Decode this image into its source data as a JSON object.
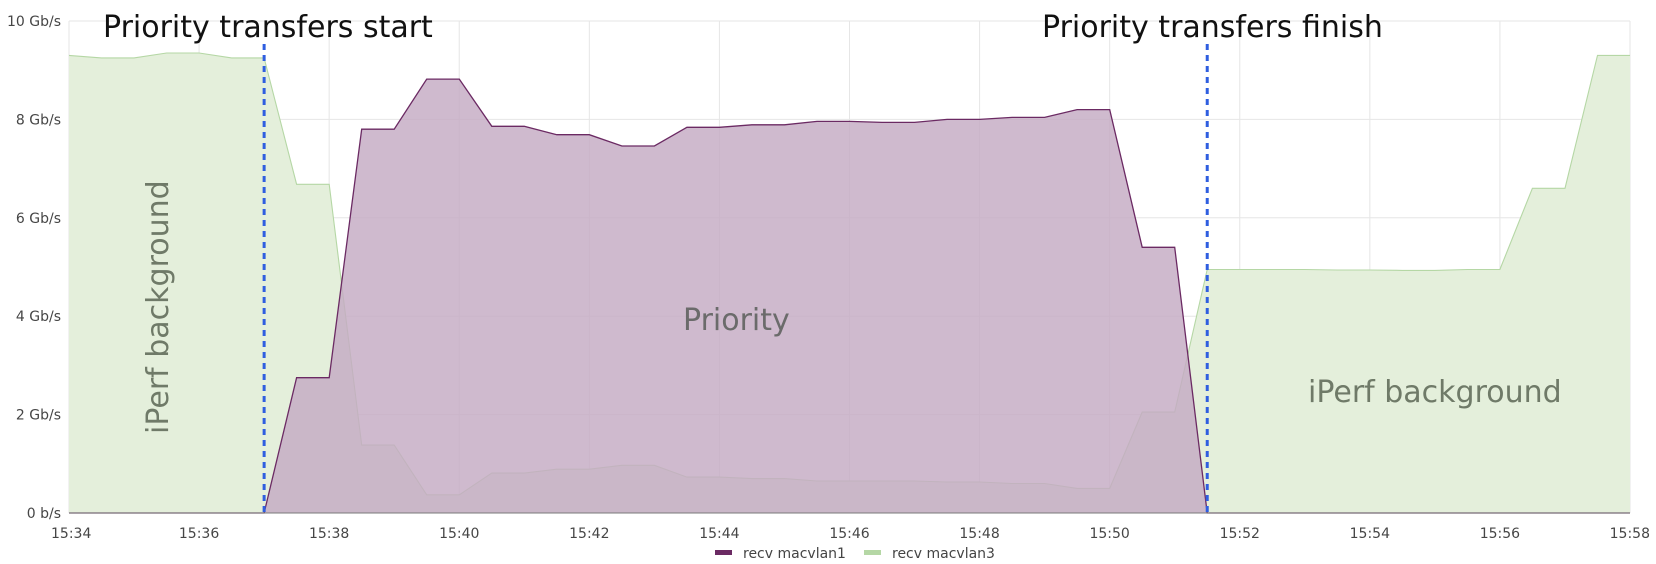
{
  "chart_data": {
    "type": "area",
    "x": [
      "15:34",
      "15:34:30",
      "15:35",
      "15:35:30",
      "15:36",
      "15:36:30",
      "15:37",
      "15:37:30",
      "15:38",
      "15:38:30",
      "15:39",
      "15:39:30",
      "15:40",
      "15:40:30",
      "15:41",
      "15:41:30",
      "15:42",
      "15:42:30",
      "15:43",
      "15:43:30",
      "15:44",
      "15:44:30",
      "15:45",
      "15:45:30",
      "15:46",
      "15:46:30",
      "15:47",
      "15:47:30",
      "15:48",
      "15:48:30",
      "15:49",
      "15:49:30",
      "15:50",
      "15:50:30",
      "15:51",
      "15:51:30",
      "15:52",
      "15:52:30",
      "15:53",
      "15:53:30",
      "15:54",
      "15:54:30",
      "15:55",
      "15:55:30",
      "15:56",
      "15:56:30",
      "15:57",
      "15:57:30",
      "15:58"
    ],
    "series": [
      {
        "name": "recv macvlan1",
        "color": "#6b2a63",
        "fill": "#c4abc3",
        "values": [
          0,
          0,
          0,
          0,
          0,
          0,
          0,
          2.75,
          2.75,
          7.8,
          7.8,
          8.82,
          8.82,
          7.86,
          7.86,
          7.69,
          7.69,
          7.46,
          7.46,
          7.84,
          7.84,
          7.89,
          7.89,
          7.96,
          7.96,
          7.94,
          7.94,
          8.0,
          8.0,
          8.04,
          8.04,
          8.2,
          8.2,
          5.4,
          5.4,
          0,
          0,
          0,
          0,
          0,
          0,
          0,
          0,
          0,
          0,
          0,
          0,
          0,
          0
        ]
      },
      {
        "name": "recv macvlan3",
        "color": "#b5d7a5",
        "fill": "#e4efdb",
        "values": [
          9.3,
          9.25,
          9.25,
          9.35,
          9.35,
          9.25,
          9.25,
          6.68,
          6.68,
          1.38,
          1.38,
          0.37,
          0.37,
          0.81,
          0.81,
          0.89,
          0.89,
          0.97,
          0.97,
          0.73,
          0.73,
          0.7,
          0.7,
          0.65,
          0.65,
          0.65,
          0.65,
          0.63,
          0.63,
          0.6,
          0.6,
          0.5,
          0.5,
          2.05,
          2.05,
          4.95,
          4.95,
          4.95,
          4.95,
          4.94,
          4.94,
          4.93,
          4.93,
          4.95,
          4.95,
          6.6,
          6.6,
          9.3,
          9.3
        ]
      }
    ],
    "xticks": [
      "15:34",
      "15:36",
      "15:38",
      "15:40",
      "15:42",
      "15:44",
      "15:46",
      "15:48",
      "15:50",
      "15:52",
      "15:54",
      "15:56",
      "15:58"
    ],
    "yticks": [
      "0 b/s",
      "2 Gb/s",
      "4 Gb/s",
      "6 Gb/s",
      "8 Gb/s",
      "10 Gb/s"
    ],
    "ylim": [
      0,
      10
    ],
    "grid": true,
    "legend_position": "bottom",
    "markers": [
      {
        "label": "Priority transfers start",
        "x": "15:37"
      },
      {
        "label": "Priority transfers finish",
        "x": "15:51:30"
      }
    ],
    "annotations": {
      "left": "iPerf background",
      "center": "Priority",
      "right": "iPerf background"
    }
  }
}
